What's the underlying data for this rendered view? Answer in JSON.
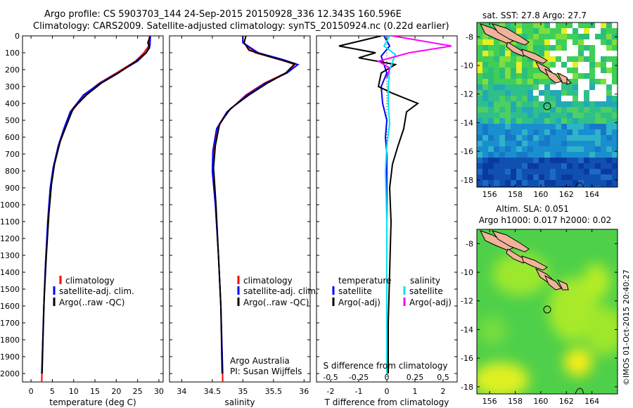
{
  "header": {
    "line1": "Argo profile: CS 5903703_144 24-Sep-2015 20150928_336 12.343S 160.596E",
    "line2": "Climatology: CARS2009. Satellite-adjusted climatology: synTS_20150924.nc (0.22d earlier)"
  },
  "colors": {
    "climatology": "#ff0000",
    "satellite": "#0000ff",
    "argo": "#000000",
    "sat_salinity": "#00e5ee",
    "argo_salinity": "#ff00ff"
  },
  "chart_data": [
    {
      "type": "line",
      "id": "temperature",
      "xlabel": "temperature (deg C)",
      "xlim": [
        -2,
        31
      ],
      "ylim": [
        2050,
        0
      ],
      "xticks": [
        "0",
        "5",
        "10",
        "15",
        "20",
        "25",
        "30"
      ],
      "yticks": [
        "0",
        "100",
        "200",
        "300",
        "400",
        "500",
        "600",
        "700",
        "800",
        "900",
        "1000",
        "1100",
        "1200",
        "1300",
        "1400",
        "1500",
        "1600",
        "1700",
        "1800",
        "1900",
        "2000"
      ],
      "legend": [
        "climatology",
        "satellite-adj. clim.",
        "Argo(..raw -QC)"
      ],
      "series": [
        {
          "name": "climatology",
          "color": "#ff0000",
          "points": [
            [
              27.8,
              0
            ],
            [
              27.6,
              60
            ],
            [
              26.5,
              100
            ],
            [
              24.5,
              150
            ],
            [
              20,
              220
            ],
            [
              16,
              280
            ],
            [
              12.5,
              350
            ],
            [
              9.5,
              450
            ],
            [
              8,
              550
            ],
            [
              6.5,
              650
            ],
            [
              5.3,
              780
            ],
            [
              4.6,
              900
            ],
            [
              4,
              1100
            ],
            [
              3.4,
              1350
            ],
            [
              3,
              1600
            ],
            [
              2.7,
              1850
            ],
            [
              2.5,
              2050
            ]
          ]
        },
        {
          "name": "satellite-adj. clim.",
          "color": "#0000ff",
          "points": [
            [
              28,
              0
            ],
            [
              27.9,
              60
            ],
            [
              27,
              100
            ],
            [
              25,
              150
            ],
            [
              20.3,
              220
            ],
            [
              16.2,
              280
            ],
            [
              12.3,
              350
            ],
            [
              9.2,
              450
            ],
            [
              7.7,
              550
            ],
            [
              6.4,
              650
            ],
            [
              5.2,
              780
            ],
            [
              4.5,
              900
            ],
            [
              3.9,
              1100
            ],
            [
              3.4,
              1350
            ],
            [
              3,
              1600
            ],
            [
              2.7,
              1850
            ],
            [
              2.5,
              2000
            ]
          ]
        },
        {
          "name": "Argo(..raw -QC)",
          "color": "#000000",
          "points": [
            [
              27.9,
              5
            ],
            [
              27.4,
              40
            ],
            [
              27.8,
              70
            ],
            [
              27,
              100
            ],
            [
              25.2,
              140
            ],
            [
              20.5,
              220
            ],
            [
              16.5,
              280
            ],
            [
              13,
              350
            ],
            [
              9.9,
              430
            ],
            [
              8.3,
              530
            ],
            [
              6.9,
              620
            ],
            [
              5.5,
              760
            ],
            [
              4.8,
              880
            ],
            [
              4.2,
              1050
            ],
            [
              3.6,
              1300
            ],
            [
              3.1,
              1550
            ],
            [
              2.8,
              1800
            ],
            [
              2.6,
              2000
            ]
          ]
        }
      ]
    },
    {
      "type": "line",
      "id": "salinity",
      "xlabel": "salinity",
      "xlim": [
        33.8,
        36.1
      ],
      "ylim": [
        2050,
        0
      ],
      "xticks": [
        "34",
        "34.5",
        "35",
        "35.5",
        "36"
      ],
      "legend": [
        "climatology",
        "satellite-adj. clim.",
        "Argo(..raw -QC)"
      ],
      "annotations": [
        "Argo Australia",
        "PI: Susan Wijffels"
      ],
      "series": [
        {
          "name": "climatology",
          "color": "#ff0000",
          "points": [
            [
              35,
              0
            ],
            [
              35,
              40
            ],
            [
              35.2,
              100
            ],
            [
              35.6,
              140
            ],
            [
              35.85,
              170
            ],
            [
              35.7,
              220
            ],
            [
              35.35,
              280
            ],
            [
              35.05,
              350
            ],
            [
              34.75,
              450
            ],
            [
              34.58,
              550
            ],
            [
              34.52,
              680
            ],
            [
              34.5,
              800
            ],
            [
              34.55,
              1000
            ],
            [
              34.6,
              1300
            ],
            [
              34.64,
              1600
            ],
            [
              34.67,
              2050
            ]
          ]
        },
        {
          "name": "satellite-adj. clim.",
          "color": "#0000ff",
          "points": [
            [
              35,
              0
            ],
            [
              35,
              40
            ],
            [
              35.25,
              100
            ],
            [
              35.65,
              140
            ],
            [
              35.9,
              170
            ],
            [
              35.72,
              220
            ],
            [
              35.37,
              280
            ],
            [
              35.07,
              350
            ],
            [
              34.74,
              450
            ],
            [
              34.57,
              550
            ],
            [
              34.51,
              680
            ],
            [
              34.5,
              800
            ],
            [
              34.55,
              1000
            ],
            [
              34.6,
              1300
            ],
            [
              34.64,
              1600
            ],
            [
              34.67,
              2000
            ]
          ]
        },
        {
          "name": "Argo(..raw -QC)",
          "color": "#000000",
          "points": [
            [
              35.05,
              0
            ],
            [
              35.02,
              40
            ],
            [
              35.1,
              85
            ],
            [
              35.5,
              130
            ],
            [
              35.85,
              165
            ],
            [
              35.7,
              220
            ],
            [
              35.4,
              280
            ],
            [
              35.1,
              350
            ],
            [
              34.8,
              430
            ],
            [
              34.62,
              520
            ],
            [
              34.55,
              650
            ],
            [
              34.52,
              780
            ],
            [
              34.56,
              1000
            ],
            [
              34.6,
              1300
            ],
            [
              34.64,
              1600
            ],
            [
              34.66,
              2000
            ]
          ]
        }
      ]
    },
    {
      "type": "line",
      "id": "difference",
      "xlabel": "T difference from climatology",
      "xlabel_top": "S difference from climatology",
      "xlim": [
        -2.5,
        2.5
      ],
      "ylim": [
        2050,
        0
      ],
      "xticks": [
        "-2",
        "-1",
        "0",
        "1",
        "2"
      ],
      "xticks_s": [
        "-0.5",
        "-0.25",
        "0",
        "0.25",
        "0.5"
      ],
      "legend_temperature": "temperature",
      "legend_salinity": "salinity",
      "legend": [
        "satellite",
        "Argo(-adj)",
        "satellite",
        "Argo(-adj)"
      ],
      "series": [
        {
          "name": "temperature satellite",
          "color": "#0000ff",
          "points": [
            [
              -0.1,
              0
            ],
            [
              0.1,
              60
            ],
            [
              -0.2,
              120
            ],
            [
              0,
              220
            ],
            [
              -0.2,
              300
            ],
            [
              -0.15,
              400
            ],
            [
              0,
              500
            ],
            [
              -0.05,
              600
            ],
            [
              0,
              700
            ],
            [
              0,
              1000
            ],
            [
              0,
              1500
            ],
            [
              0,
              2000
            ]
          ]
        },
        {
          "name": "temperature Argo(-adj)",
          "color": "#000000",
          "points": [
            [
              -0.2,
              0
            ],
            [
              -1.7,
              60
            ],
            [
              -0.4,
              100
            ],
            [
              -1,
              130
            ],
            [
              0.3,
              170
            ],
            [
              -0.2,
              220
            ],
            [
              -0.3,
              300
            ],
            [
              0.2,
              340
            ],
            [
              1.1,
              400
            ],
            [
              0.7,
              450
            ],
            [
              0.6,
              550
            ],
            [
              0.4,
              650
            ],
            [
              0.2,
              760
            ],
            [
              0.1,
              900
            ],
            [
              0.15,
              1100
            ],
            [
              0.1,
              1400
            ],
            [
              0.05,
              1700
            ],
            [
              0.05,
              2000
            ]
          ]
        },
        {
          "name": "salinity satellite",
          "color": "#00e5ee",
          "points": [
            [
              0.1,
              0
            ],
            [
              -0.1,
              60
            ],
            [
              0.3,
              110
            ],
            [
              0.1,
              200
            ],
            [
              0.05,
              300
            ],
            [
              0.05,
              400
            ],
            [
              0.1,
              520
            ],
            [
              0,
              650
            ],
            [
              -0.05,
              800
            ],
            [
              0,
              1100
            ],
            [
              0,
              1500
            ],
            [
              0,
              2000
            ]
          ]
        },
        {
          "name": "salinity Argo(-adj)",
          "color": "#ff00ff",
          "points": [
            [
              0.2,
              0
            ],
            [
              2.3,
              60
            ],
            [
              0.8,
              100
            ],
            [
              -0.3,
              150
            ],
            [
              0.1,
              190
            ],
            [
              0,
              250
            ]
          ]
        }
      ]
    }
  ],
  "maps": {
    "sst_title": "sat. SST: 27.8 Argo: 27.7",
    "sla_title1": "Altim. SLA: 0.051",
    "sla_title2": "Argo h1000: 0.017 h2000: 0.02",
    "yticks": [
      "-8",
      "-10",
      "-12",
      "-14",
      "-16",
      "-18"
    ],
    "xticks": [
      "156",
      "158",
      "160",
      "162",
      "164"
    ]
  },
  "credit": "©IMOS 01-Oct-2015 20:40:27"
}
